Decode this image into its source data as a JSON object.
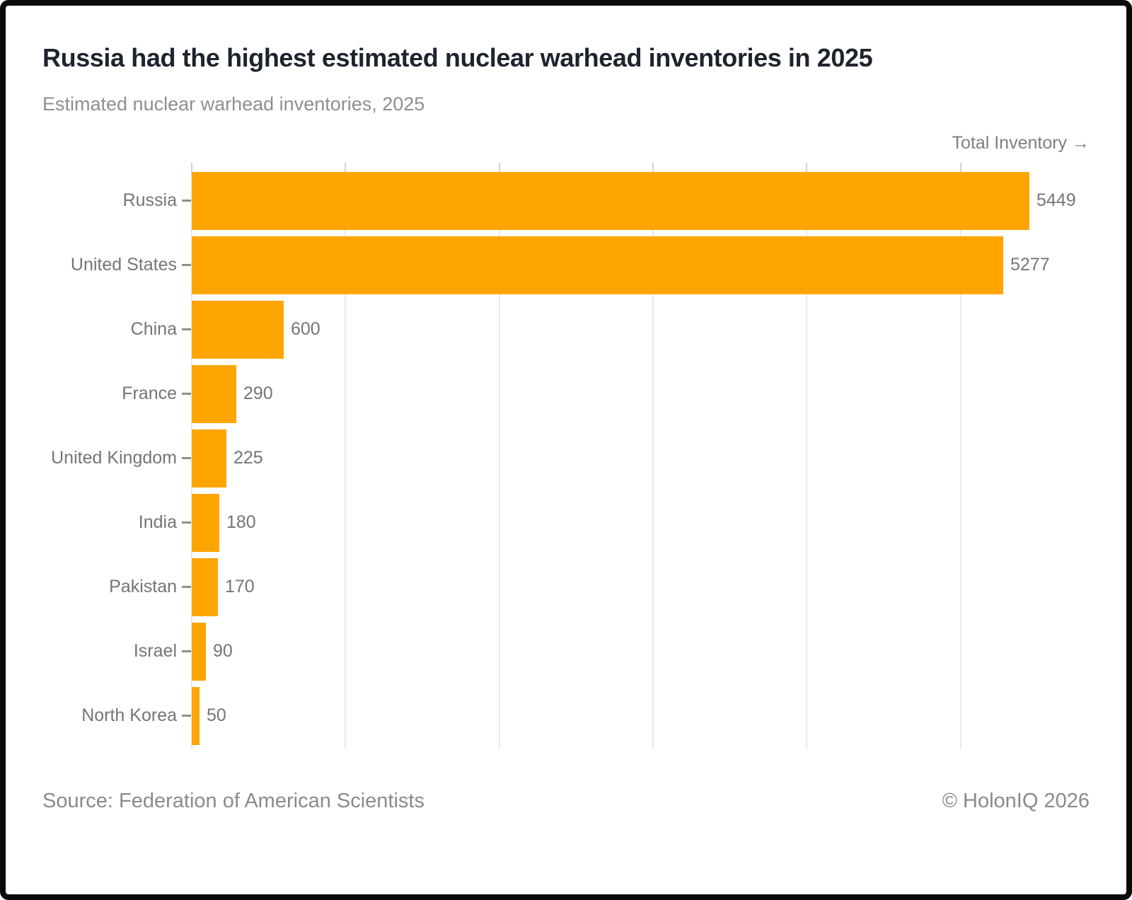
{
  "header": {
    "title": "Russia had the highest estimated nuclear warhead inventories in 2025",
    "subtitle": "Estimated nuclear warhead inventories, 2025"
  },
  "axis": {
    "label": "Total Inventory →"
  },
  "chart_data": {
    "type": "bar",
    "orientation": "horizontal",
    "title": "Russia had the highest estimated nuclear warhead inventories in 2025",
    "subtitle": "Estimated nuclear warhead inventories, 2025",
    "xlabel": "Total Inventory",
    "ylabel": "",
    "categories": [
      "Russia",
      "United States",
      "China",
      "France",
      "United Kingdom",
      "India",
      "Pakistan",
      "Israel",
      "North Korea"
    ],
    "values": [
      5449,
      5277,
      600,
      290,
      225,
      180,
      170,
      90,
      50
    ],
    "value_labels_shown": true,
    "xlim": [
      0,
      5980
    ],
    "xticks": [
      0,
      1000,
      2000,
      3000,
      4000,
      5000
    ],
    "grid": true,
    "legend": "none",
    "bar_color": "#FFA502"
  },
  "footer": {
    "source": "Source: Federation of American Scientists",
    "copyright": "© HolonIQ 2026"
  },
  "colors": {
    "bar": "#FFA502",
    "title_text": "#1d242e",
    "muted_text": "#757575",
    "subtitle_text": "#8f8f8f",
    "grid": "#e9e9e9",
    "grid_tick": "#d3d3d3",
    "frame": "#0a0a0a",
    "background": "#ffffff"
  }
}
